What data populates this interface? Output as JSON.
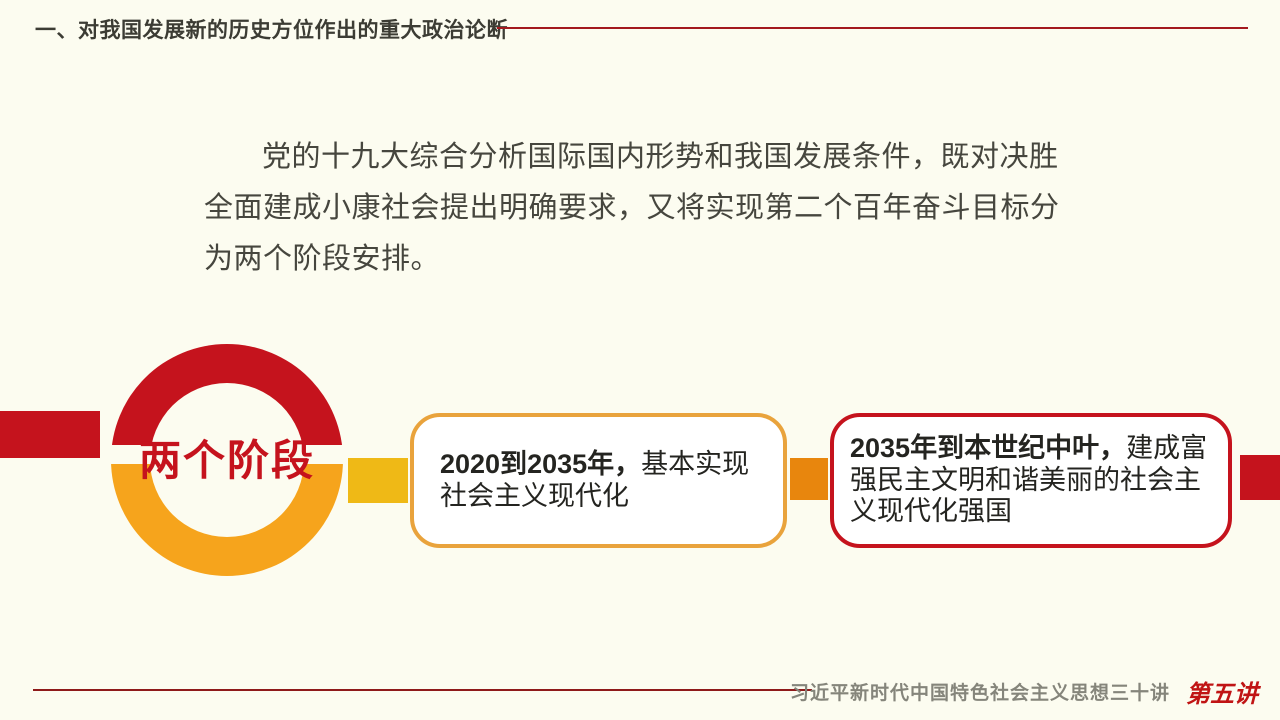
{
  "header": {
    "title": "一、对我国发展新的历史方位作出的重大政治论断"
  },
  "paragraph": {
    "lines": [
      "党的十九大综合分析国际国内形势和我国发展条件，既对决胜",
      "全面建成小康社会提出明确要求，又将实现第二个百年奋斗目标分",
      "为两个阶段安排。"
    ]
  },
  "diagram": {
    "hub_label": "两个阶段",
    "stages": [
      {
        "bold": "2020到2035年，",
        "rest": "基本实现社会主义现代化"
      },
      {
        "bold": "2035年到本世纪中叶，",
        "rest": "建成富强民主文明和谐美丽的社会主义现代化强国"
      }
    ]
  },
  "footer": {
    "title": "习近平新时代中国特色社会主义思想三十讲",
    "badge": "第五讲"
  },
  "colors": {
    "background": "#FCFCF0",
    "red": "#C5131D",
    "ring_orange": "#F6A41C",
    "gold_connector": "#EFB916",
    "dark_orange_connector": "#E8860D",
    "stage1_border": "#E9A33C",
    "header_line": "#A3191E",
    "footer_line": "#8E1A1A",
    "footer_text": "#85857B",
    "body_text": "#46463E"
  }
}
